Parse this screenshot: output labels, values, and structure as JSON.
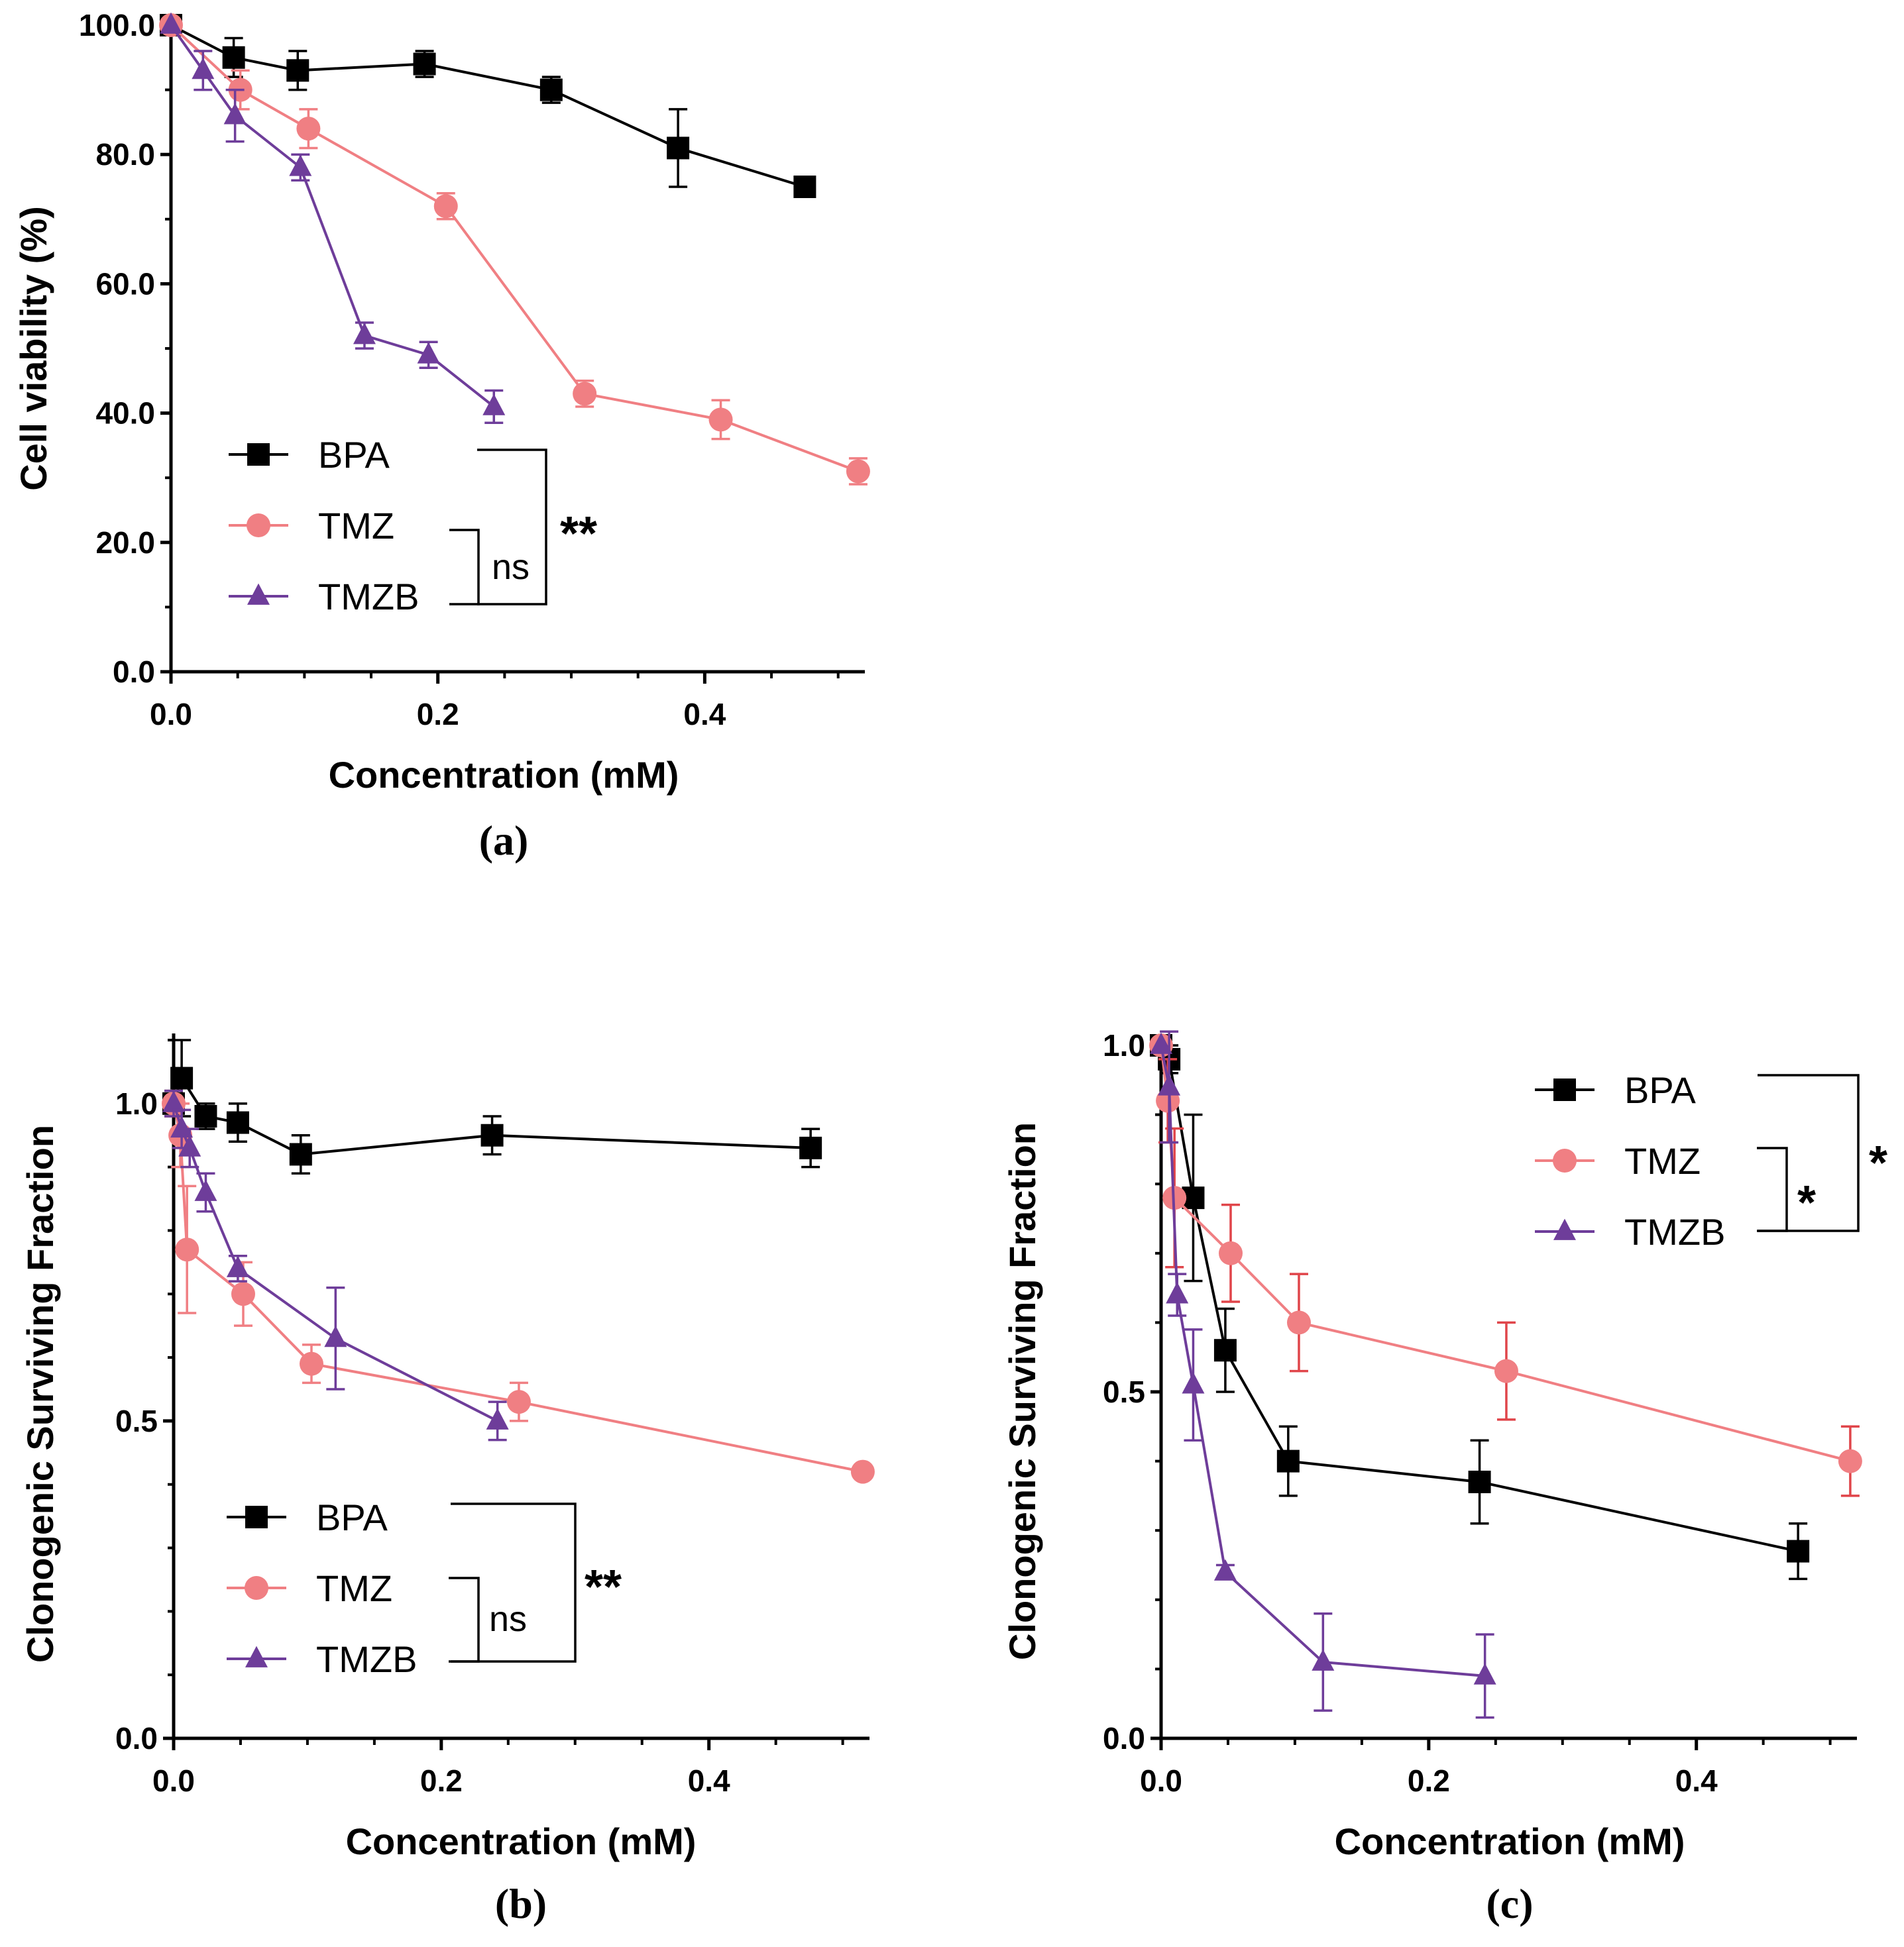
{
  "colors": {
    "BPA": "#000000",
    "TMZ": "#f07f83",
    "TMZB": "#6e3d9a",
    "TMZ_errorbar_c": "#e0454a"
  },
  "chart_data": [
    {
      "panel": "(a)",
      "type": "line",
      "xlabel": "Concentration (mM)",
      "ylabel": "Cell viability (%)",
      "xlim": [
        0,
        0.52
      ],
      "ylim": [
        0,
        100
      ],
      "xticks": [
        "0.0",
        "0.2",
        "0.4"
      ],
      "yticks": [
        "0.0",
        "20.0",
        "40.0",
        "60.0",
        "80.0",
        "100.0"
      ],
      "series": [
        {
          "name": "BPA",
          "marker": "square",
          "x": [
            0,
            0.047,
            0.095,
            0.19,
            0.285,
            0.38,
            0.475
          ],
          "y": [
            100,
            95,
            93,
            94,
            90,
            81,
            75
          ],
          "err": [
            0,
            3,
            3,
            2,
            2,
            6,
            1.5
          ]
        },
        {
          "name": "TMZ",
          "marker": "circle",
          "x": [
            0,
            0.052,
            0.103,
            0.206,
            0.31,
            0.412,
            0.515
          ],
          "y": [
            100,
            90,
            84,
            72,
            43,
            39,
            31
          ],
          "err": [
            0,
            3,
            3,
            2,
            2,
            3,
            2
          ]
        },
        {
          "name": "TMZB",
          "marker": "triangle",
          "x": [
            0,
            0.024,
            0.048,
            0.097,
            0.145,
            0.193,
            0.242
          ],
          "y": [
            100,
            93,
            86,
            78,
            52,
            49,
            41
          ],
          "err": [
            0,
            3,
            4,
            2,
            2,
            2,
            2.5
          ]
        }
      ],
      "legend": [
        "BPA",
        "TMZ",
        "TMZB"
      ],
      "annotations": {
        "inner": "ns",
        "outer": "**"
      }
    },
    {
      "panel": "(b)",
      "type": "line",
      "xlabel": "Concentration (mM)",
      "ylabel": "Clonogenic Surviving Fraction",
      "xlim": [
        0,
        0.52
      ],
      "ylim": [
        0,
        1.1
      ],
      "xticks": [
        "0.0",
        "0.2",
        "0.4"
      ],
      "yticks": [
        "0.0",
        "0.5",
        "1.0"
      ],
      "series": [
        {
          "name": "BPA",
          "marker": "square",
          "x": [
            0,
            0.006,
            0.024,
            0.048,
            0.095,
            0.238,
            0.476
          ],
          "y": [
            1.0,
            1.04,
            0.98,
            0.97,
            0.92,
            0.95,
            0.93
          ],
          "err": [
            0.02,
            0.06,
            0.02,
            0.03,
            0.03,
            0.03,
            0.03
          ]
        },
        {
          "name": "TMZ",
          "marker": "circle",
          "x": [
            0,
            0.005,
            0.01,
            0.052,
            0.103,
            0.258,
            0.515
          ],
          "y": [
            1.0,
            0.95,
            0.77,
            0.7,
            0.59,
            0.53,
            0.42
          ],
          "err": [
            0.02,
            0.05,
            0.1,
            0.05,
            0.03,
            0.03,
            0.0
          ]
        },
        {
          "name": "TMZB",
          "marker": "triangle",
          "x": [
            0,
            0.006,
            0.012,
            0.024,
            0.048,
            0.121,
            0.242
          ],
          "y": [
            1.0,
            0.96,
            0.93,
            0.86,
            0.74,
            0.63,
            0.5
          ],
          "err": [
            0.02,
            0.03,
            0.03,
            0.03,
            0.02,
            0.08,
            0.03
          ]
        }
      ],
      "legend": [
        "BPA",
        "TMZ",
        "TMZB"
      ],
      "annotations": {
        "inner": "ns",
        "outer": "**"
      }
    },
    {
      "panel": "(c)",
      "type": "line",
      "xlabel": "Concentration (mM)",
      "ylabel": "Clonogenic Surviving Fraction",
      "xlim": [
        0,
        0.52
      ],
      "ylim": [
        0,
        1.0
      ],
      "xticks": [
        "0.0",
        "0.2",
        "0.4"
      ],
      "yticks": [
        "0.0",
        "0.5",
        "1.0"
      ],
      "series": [
        {
          "name": "BPA",
          "marker": "square",
          "x": [
            0,
            0.006,
            0.024,
            0.048,
            0.095,
            0.238,
            0.476
          ],
          "y": [
            1.0,
            0.98,
            0.78,
            0.56,
            0.4,
            0.37,
            0.27
          ],
          "err": [
            0.0,
            0.02,
            0.12,
            0.06,
            0.05,
            0.06,
            0.04
          ]
        },
        {
          "name": "TMZ",
          "marker": "circle",
          "x": [
            0,
            0.005,
            0.01,
            0.052,
            0.103,
            0.258,
            0.515
          ],
          "y": [
            1.0,
            0.92,
            0.78,
            0.7,
            0.6,
            0.53,
            0.4
          ],
          "err": [
            0.0,
            0.06,
            0.1,
            0.07,
            0.07,
            0.07,
            0.05
          ]
        },
        {
          "name": "TMZB",
          "marker": "triangle",
          "x": [
            0,
            0.006,
            0.012,
            0.024,
            0.048,
            0.121,
            0.242
          ],
          "y": [
            1.0,
            0.94,
            0.64,
            0.51,
            0.24,
            0.11,
            0.09
          ],
          "err": [
            0.0,
            0.08,
            0.03,
            0.08,
            0.01,
            0.07,
            0.06
          ]
        }
      ],
      "legend": [
        "BPA",
        "TMZ",
        "TMZB"
      ],
      "annotations": {
        "inner": "*",
        "outer": "*"
      }
    }
  ]
}
